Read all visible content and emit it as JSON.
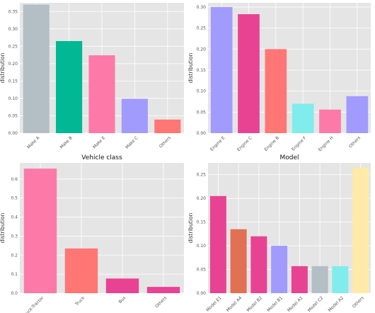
{
  "chart_data": [
    {
      "type": "bar",
      "title": "",
      "ylabel": "distribution",
      "categories": [
        "Make A",
        "Make B",
        "Make E",
        "Make C",
        "Others"
      ],
      "values": [
        0.37,
        0.265,
        0.224,
        0.099,
        0.039
      ],
      "colors": [
        "#b3bec5",
        "#00b894",
        "#fd79a8",
        "#a29bfe",
        "#ff7675"
      ],
      "ylim": [
        0,
        0.375
      ],
      "yticks": [
        "0.00",
        "0.05",
        "0.10",
        "0.15",
        "0.20",
        "0.25",
        "0.30",
        "0.35"
      ],
      "ytick_values": [
        0,
        0.05,
        0.1,
        0.15,
        0.2,
        0.25,
        0.3,
        0.35
      ],
      "grid": true
    },
    {
      "type": "bar",
      "title": "",
      "ylabel": "distribution",
      "categories": [
        "Engine E",
        "Engine C",
        "Engine B",
        "Engine F",
        "Engine H",
        "Others"
      ],
      "values": [
        0.3,
        0.283,
        0.2,
        0.07,
        0.056,
        0.088
      ],
      "colors": [
        "#a29bfe",
        "#e84393",
        "#ff7675",
        "#81ecec",
        "#fd79a8",
        "#a29bfe"
      ],
      "ylim": [
        0,
        0.31
      ],
      "yticks": [
        "0.00",
        "0.05",
        "0.10",
        "0.15",
        "0.20",
        "0.25",
        "0.30"
      ],
      "ytick_values": [
        0,
        0.05,
        0.1,
        0.15,
        0.2,
        0.25,
        0.3
      ],
      "grid": true
    },
    {
      "type": "bar",
      "title": "Vehicle class",
      "ylabel": "distribution",
      "categories": [
        "Truck-Tractor",
        "Truck",
        "Bus",
        "Others"
      ],
      "values": [
        0.655,
        0.235,
        0.077,
        0.033
      ],
      "colors": [
        "#fd79a8",
        "#ff7675",
        "#e84393",
        "#e84393"
      ],
      "ylim": [
        0,
        0.685
      ],
      "yticks": [
        "0.0",
        "0.1",
        "0.2",
        "0.3",
        "0.4",
        "0.5",
        "0.6"
      ],
      "ytick_values": [
        0,
        0.1,
        0.2,
        0.3,
        0.4,
        0.5,
        0.6
      ],
      "grid": true
    },
    {
      "type": "bar",
      "title": "Model",
      "ylabel": "distribution",
      "categories": [
        "Model E1",
        "Model A4",
        "Model B2",
        "Model B1",
        "Model A1",
        "Model C2",
        "Model A2",
        "Others"
      ],
      "values": [
        0.205,
        0.135,
        0.12,
        0.1,
        0.057,
        0.057,
        0.057,
        0.265
      ],
      "colors": [
        "#e84393",
        "#e17055",
        "#e84393",
        "#a29bfe",
        "#e84393",
        "#b3bec5",
        "#81ecec",
        "#ffeaa7"
      ],
      "ylim": [
        0,
        0.275
      ],
      "yticks": [
        "0.00",
        "0.05",
        "0.10",
        "0.15",
        "0.20",
        "0.25"
      ],
      "ytick_values": [
        0,
        0.05,
        0.1,
        0.15,
        0.2,
        0.25
      ],
      "grid": true
    }
  ]
}
